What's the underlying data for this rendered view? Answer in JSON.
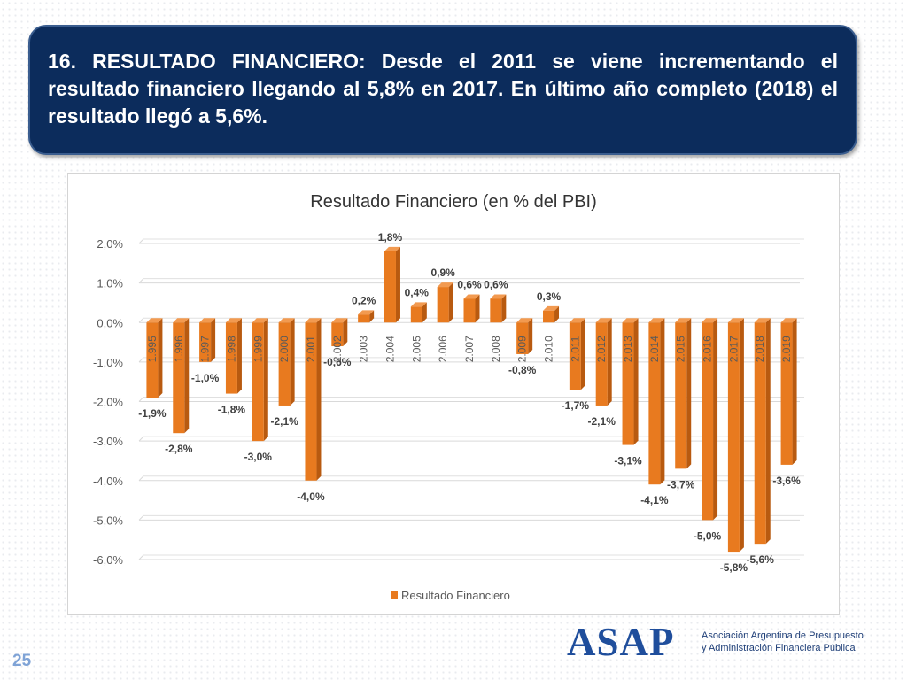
{
  "headline": {
    "text": "16. RESULTADO FINANCIERO: Desde el 2011 se viene incrementando el resultado financiero llegando al  5,8% en 2017. En último año completo (2018) el resultado llegó a 5,6%."
  },
  "chart_data": {
    "type": "bar",
    "title": "Resultado Financiero (en % del PBI)",
    "xlabel": "",
    "ylabel": "",
    "categories": [
      "1.995",
      "1.996",
      "1.997",
      "1.998",
      "1.999",
      "2.000",
      "2.001",
      "2.002",
      "2.003",
      "2.004",
      "2.005",
      "2.006",
      "2.007",
      "2.008",
      "2.009",
      "2.010",
      "2.011",
      "2.012",
      "2.013",
      "2.014",
      "2.015",
      "2.016",
      "2.017",
      "2.018",
      "2.019"
    ],
    "series": [
      {
        "name": "Resultado Financiero",
        "values": [
          -1.9,
          -2.8,
          -1.0,
          -1.8,
          -3.0,
          -2.1,
          -4.0,
          -0.6,
          0.2,
          1.8,
          0.4,
          0.9,
          0.6,
          0.6,
          -0.8,
          0.3,
          -1.7,
          -2.1,
          -3.1,
          -4.1,
          -3.7,
          -5.0,
          -5.8,
          -5.6,
          -3.6
        ],
        "labels": [
          "-1,9%",
          "-2,8%",
          "-1,0%",
          "-1,8%",
          "-3,0%",
          "-2,1%",
          "-4,0%",
          "-0,6%",
          "0,2%",
          "1,8%",
          "0,4%",
          "0,9%",
          "0,6%",
          "0,6%",
          "-0,8%",
          "0,3%",
          "-1,7%",
          "-2,1%",
          "-3,1%",
          "-4,1%",
          "-3,7%",
          "-5,0%",
          "-5,8%",
          "-5,6%",
          "-3,6%"
        ]
      }
    ],
    "ylim": [
      -6.0,
      2.0
    ],
    "yticks": [
      2.0,
      1.0,
      0.0,
      -1.0,
      -2.0,
      -3.0,
      -4.0,
      -5.0,
      -6.0
    ],
    "ytick_labels": [
      "2,0%",
      "1,0%",
      "0,0%",
      "-1,0%",
      "-2,0%",
      "-3,0%",
      "-4,0%",
      "-5,0%",
      "-6,0%"
    ],
    "grid": true,
    "legend": "bottom",
    "bar_color": "#e87a1f",
    "bar_style": "3d"
  },
  "logo": {
    "word": "ASAP",
    "line1": "Asociación Argentina de Presupuesto",
    "line2": "y Administración Financiera Pública"
  },
  "page": {
    "number": "25"
  }
}
